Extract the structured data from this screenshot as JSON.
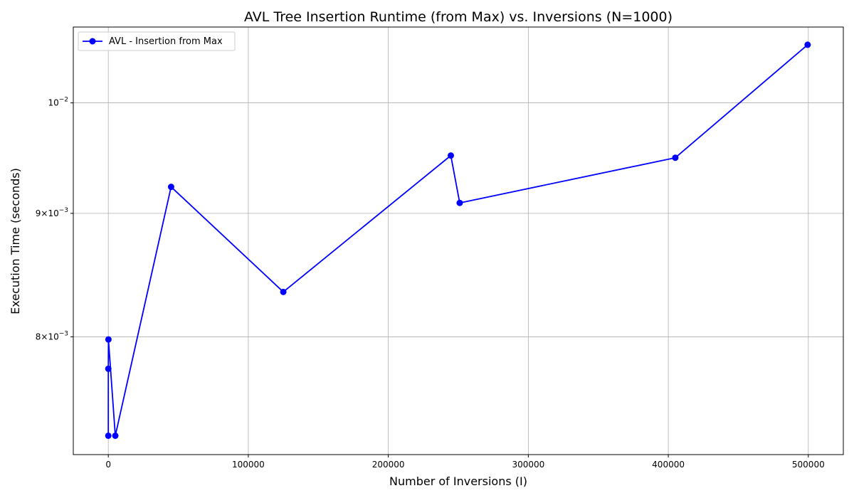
{
  "chart_data": {
    "type": "line",
    "title": "AVL Tree Insertion Runtime (from Max) vs. Inversions (N=1000)",
    "xlabel": "Number of Inversions (I)",
    "ylabel": "Execution Time (seconds)",
    "xscale": "linear",
    "yscale": "log",
    "xlim": [
      -25000,
      525000
    ],
    "ylim": [
      0.00715,
      0.01075
    ],
    "grid": true,
    "legend_location": "upper left",
    "x_ticks": [
      {
        "value": 0,
        "label": "0"
      },
      {
        "value": 100000,
        "label": "100000"
      },
      {
        "value": 200000,
        "label": "200000"
      },
      {
        "value": 300000,
        "label": "300000"
      },
      {
        "value": 400000,
        "label": "400000"
      },
      {
        "value": 500000,
        "label": "500000"
      }
    ],
    "y_ticks": [
      {
        "value": 0.008,
        "mantissa": "8",
        "times": "×",
        "base": "10",
        "exp": "−3"
      },
      {
        "value": 0.009,
        "mantissa": "9",
        "times": "×",
        "base": "10",
        "exp": "−3"
      },
      {
        "value": 0.01,
        "mantissa": "",
        "times": "",
        "base": "10",
        "exp": "−2"
      }
    ],
    "series": [
      {
        "name": "AVL - Insertion from Max",
        "color": "#0000ff",
        "marker": "circle",
        "x": [
          0,
          10,
          100,
          5000,
          44850,
          125000,
          244650,
          251000,
          405000,
          499500
        ],
        "y": [
          0.00728,
          0.00776,
          0.00798,
          0.00728,
          0.00923,
          0.00835,
          0.00951,
          0.00909,
          0.00949,
          0.01057
        ]
      }
    ]
  }
}
